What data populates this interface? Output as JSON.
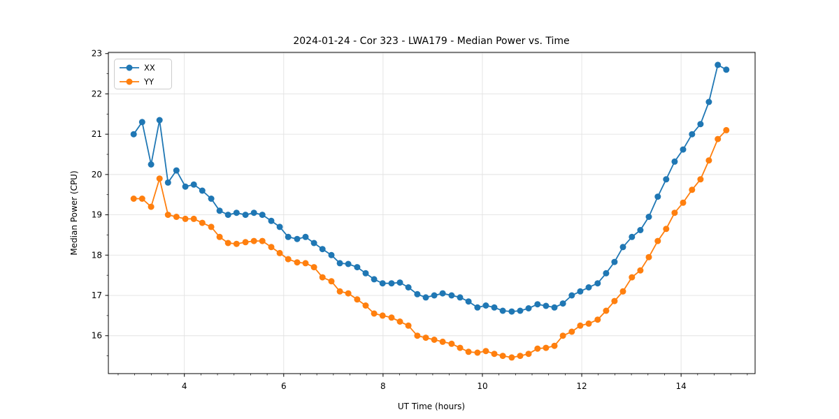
{
  "figure": {
    "title": "2024-01-24 - Cor 323 - LWA179 - Median Power vs. Time",
    "xlabel": "UT Time (hours)",
    "ylabel": "Median Power (CPU)"
  },
  "legend": {
    "entries": [
      {
        "label": "XX",
        "color": "#1f77b4"
      },
      {
        "label": "YY",
        "color": "#ff7f0e"
      }
    ],
    "position": "upper left"
  },
  "chart_data": {
    "type": "line",
    "title": "2024-01-24 - Cor 323 - LWA179 - Median Power vs. Time",
    "xlabel": "UT Time (hours)",
    "ylabel": "Median Power (CPU)",
    "xlim": [
      2.47,
      15.49
    ],
    "ylim": [
      15.06,
      23.03
    ],
    "x_ticks": [
      4,
      6,
      8,
      10,
      12,
      14
    ],
    "y_ticks": [
      16,
      17,
      18,
      19,
      20,
      21,
      22,
      23
    ],
    "x_minor_step": 0.33333,
    "y_minor_step": 0.5,
    "grid": true,
    "marker": "circle",
    "marker_radius": 4.5,
    "line_width": 1.8,
    "x": [
      2.98,
      3.15,
      3.33,
      3.5,
      3.67,
      3.84,
      4.02,
      4.19,
      4.36,
      4.54,
      4.71,
      4.88,
      5.05,
      5.23,
      5.4,
      5.57,
      5.75,
      5.92,
      6.09,
      6.27,
      6.44,
      6.61,
      6.78,
      6.96,
      7.13,
      7.3,
      7.48,
      7.65,
      7.82,
      7.99,
      8.17,
      8.34,
      8.51,
      8.69,
      8.86,
      9.03,
      9.2,
      9.38,
      9.55,
      9.72,
      9.9,
      10.07,
      10.24,
      10.41,
      10.59,
      10.76,
      10.93,
      11.11,
      11.28,
      11.45,
      11.62,
      11.8,
      11.97,
      12.14,
      12.32,
      12.49,
      12.66,
      12.83,
      13.01,
      13.18,
      13.35,
      13.53,
      13.7,
      13.87,
      14.04,
      14.22,
      14.39,
      14.56,
      14.74,
      14.91
    ],
    "series": [
      {
        "name": "XX",
        "color": "#1f77b4",
        "values": [
          21.0,
          21.3,
          20.25,
          21.35,
          19.8,
          20.1,
          19.7,
          19.75,
          19.6,
          19.4,
          19.1,
          19.0,
          19.05,
          19.0,
          19.05,
          19.0,
          18.85,
          18.7,
          18.45,
          18.4,
          18.45,
          18.3,
          18.15,
          18.0,
          17.8,
          17.78,
          17.7,
          17.55,
          17.4,
          17.3,
          17.3,
          17.32,
          17.2,
          17.03,
          16.95,
          17.0,
          17.05,
          17.0,
          16.95,
          16.85,
          16.7,
          16.75,
          16.7,
          16.62,
          16.6,
          16.62,
          16.68,
          16.78,
          16.74,
          16.7,
          16.8,
          17.0,
          17.1,
          17.2,
          17.3,
          17.55,
          17.83,
          18.2,
          18.45,
          18.62,
          18.95,
          19.45,
          19.88,
          20.32,
          20.62,
          21.0,
          21.25,
          21.8,
          22.72,
          22.6
        ]
      },
      {
        "name": "YY",
        "color": "#ff7f0e",
        "values": [
          19.4,
          19.4,
          19.2,
          19.9,
          19.0,
          18.95,
          18.9,
          18.9,
          18.8,
          18.7,
          18.45,
          18.3,
          18.28,
          18.32,
          18.35,
          18.35,
          18.2,
          18.05,
          17.9,
          17.82,
          17.8,
          17.7,
          17.45,
          17.35,
          17.1,
          17.05,
          16.9,
          16.75,
          16.55,
          16.5,
          16.45,
          16.35,
          16.25,
          16.0,
          15.95,
          15.9,
          15.85,
          15.8,
          15.7,
          15.6,
          15.58,
          15.62,
          15.55,
          15.5,
          15.46,
          15.5,
          15.55,
          15.68,
          15.7,
          15.75,
          16.0,
          16.1,
          16.25,
          16.3,
          16.4,
          16.62,
          16.86,
          17.1,
          17.45,
          17.62,
          17.95,
          18.35,
          18.65,
          19.05,
          19.3,
          19.62,
          19.88,
          20.35,
          20.88,
          21.1
        ]
      }
    ]
  }
}
